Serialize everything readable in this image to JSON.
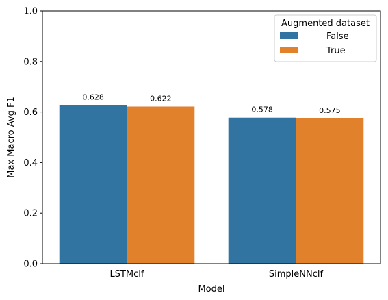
{
  "chart_data": {
    "type": "bar",
    "title": "",
    "xlabel": "Model",
    "ylabel": "Max Macro Avg F1",
    "ylim": [
      0,
      1.0
    ],
    "yticks": [
      "0.0",
      "0.2",
      "0.4",
      "0.6",
      "0.8",
      "1.0"
    ],
    "categories": [
      "LSTMclf",
      "SimpleNNclf"
    ],
    "series": [
      {
        "name": "False",
        "color": "#3274a1",
        "values": [
          0.628,
          0.578
        ],
        "labels": [
          "0.628",
          "0.578"
        ]
      },
      {
        "name": "True",
        "color": "#e1812c",
        "values": [
          0.622,
          0.575
        ],
        "labels": [
          "0.622",
          "0.575"
        ]
      }
    ],
    "legend": {
      "title": "Augmented dataset",
      "placement": "top-right"
    },
    "grid": false
  }
}
